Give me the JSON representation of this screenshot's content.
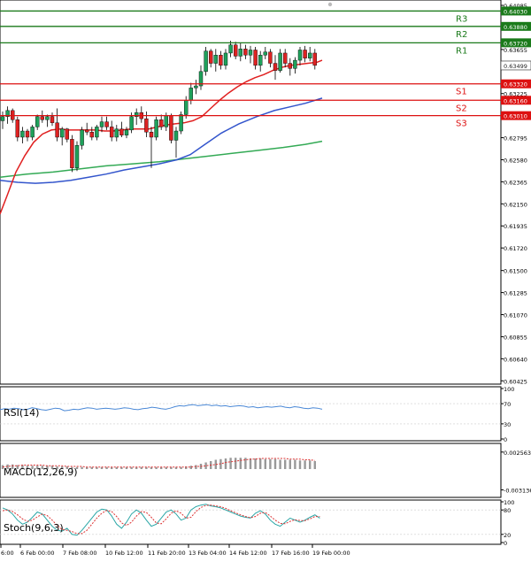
{
  "chart_data": [
    {
      "type": "candlestick",
      "panel": "price",
      "y_axis_ticks": [
        "0.64085",
        "0.63655",
        "0.63225",
        "0.62795",
        "0.62580",
        "0.62365",
        "0.62150",
        "0.61935",
        "0.61720",
        "0.61500",
        "0.61285",
        "0.61070",
        "0.60855",
        "0.60640",
        "0.60425"
      ],
      "ylim": [
        0.6041,
        0.6412
      ],
      "x_axis_labels": [
        "6:00",
        "6 Feb 00:00",
        "7 Feb 08:00",
        "10 Feb 12:00",
        "11 Feb 20:00",
        "13 Feb 04:00",
        "14 Feb 12:00",
        "17 Feb 16:00",
        "19 Feb 00:00"
      ],
      "current_price": {
        "label": "0.63499",
        "value": 0.63499
      },
      "levels": [
        {
          "name": "R3",
          "label": "0.64030",
          "value": 0.6403,
          "color": "#1a7a1a"
        },
        {
          "name": "R2",
          "label": "0.63880",
          "value": 0.6388,
          "color": "#1a7a1a"
        },
        {
          "name": "R1",
          "label": "0.63720",
          "value": 0.6372,
          "color": "#1a7a1a"
        },
        {
          "name": "S1",
          "label": "0.63320",
          "value": 0.6332,
          "color": "#dd1111"
        },
        {
          "name": "S2",
          "label": "0.63160",
          "value": 0.6316,
          "color": "#dd1111"
        },
        {
          "name": "S3",
          "label": "0.63010",
          "value": 0.6301,
          "color": "#dd1111"
        }
      ],
      "candles": [
        [
          0.6296,
          0.6305,
          0.6288,
          0.63
        ],
        [
          0.63,
          0.631,
          0.6293,
          0.6306
        ],
        [
          0.6306,
          0.6308,
          0.6294,
          0.6297
        ],
        [
          0.6297,
          0.63,
          0.6276,
          0.628
        ],
        [
          0.628,
          0.629,
          0.6274,
          0.6286
        ],
        [
          0.6286,
          0.6288,
          0.6276,
          0.628
        ],
        [
          0.628,
          0.6292,
          0.6277,
          0.629
        ],
        [
          0.629,
          0.6302,
          0.6287,
          0.63
        ],
        [
          0.63,
          0.6306,
          0.6294,
          0.6297
        ],
        [
          0.6297,
          0.6302,
          0.629,
          0.63
        ],
        [
          0.63,
          0.6304,
          0.6291,
          0.6294
        ],
        [
          0.6294,
          0.6308,
          0.6276,
          0.628
        ],
        [
          0.628,
          0.629,
          0.6272,
          0.6288
        ],
        [
          0.6288,
          0.6289,
          0.6275,
          0.6278
        ],
        [
          0.6278,
          0.6282,
          0.6246,
          0.625
        ],
        [
          0.625,
          0.6276,
          0.6247,
          0.6272
        ],
        [
          0.6272,
          0.629,
          0.6268,
          0.6287
        ],
        [
          0.6287,
          0.6294,
          0.6282,
          0.6285
        ],
        [
          0.6285,
          0.629,
          0.6277,
          0.628
        ],
        [
          0.628,
          0.6292,
          0.6277,
          0.629
        ],
        [
          0.629,
          0.63,
          0.6285,
          0.6295
        ],
        [
          0.6295,
          0.63,
          0.6287,
          0.629
        ],
        [
          0.629,
          0.6296,
          0.6276,
          0.628
        ],
        [
          0.628,
          0.6292,
          0.6276,
          0.6288
        ],
        [
          0.6288,
          0.6295,
          0.628,
          0.6282
        ],
        [
          0.6282,
          0.629,
          0.6279,
          0.6287
        ],
        [
          0.6287,
          0.6304,
          0.6284,
          0.63
        ],
        [
          0.63,
          0.6308,
          0.6292,
          0.6304
        ],
        [
          0.6304,
          0.631,
          0.6294,
          0.6298
        ],
        [
          0.6298,
          0.6305,
          0.628,
          0.6285
        ],
        [
          0.6285,
          0.629,
          0.625,
          0.628
        ],
        [
          0.628,
          0.63,
          0.6277,
          0.6297
        ],
        [
          0.6297,
          0.6302,
          0.6287,
          0.629
        ],
        [
          0.629,
          0.6304,
          0.6286,
          0.6301
        ],
        [
          0.6301,
          0.6303,
          0.6274,
          0.6277
        ],
        [
          0.6277,
          0.629,
          0.626,
          0.6286
        ],
        [
          0.6286,
          0.6305,
          0.6283,
          0.6302
        ],
        [
          0.6302,
          0.632,
          0.6298,
          0.6316
        ],
        [
          0.6316,
          0.6333,
          0.6312,
          0.6328
        ],
        [
          0.6328,
          0.6336,
          0.6322,
          0.633
        ],
        [
          0.633,
          0.635,
          0.6326,
          0.6344
        ],
        [
          0.6344,
          0.6368,
          0.634,
          0.6364
        ],
        [
          0.6364,
          0.6366,
          0.6348,
          0.6352
        ],
        [
          0.6352,
          0.6366,
          0.6344,
          0.636
        ],
        [
          0.636,
          0.6364,
          0.6346,
          0.635
        ],
        [
          0.635,
          0.6366,
          0.6346,
          0.6362
        ],
        [
          0.6362,
          0.6374,
          0.6358,
          0.637
        ],
        [
          0.637,
          0.6373,
          0.6356,
          0.6359
        ],
        [
          0.6359,
          0.6372,
          0.6354,
          0.6366
        ],
        [
          0.6366,
          0.637,
          0.6356,
          0.636
        ],
        [
          0.636,
          0.6369,
          0.6352,
          0.6365
        ],
        [
          0.6365,
          0.6368,
          0.6346,
          0.635
        ],
        [
          0.635,
          0.6364,
          0.6344,
          0.636
        ],
        [
          0.636,
          0.6368,
          0.6356,
          0.6363
        ],
        [
          0.6363,
          0.6366,
          0.6348,
          0.6352
        ],
        [
          0.6352,
          0.636,
          0.6336,
          0.6345
        ],
        [
          0.6345,
          0.6366,
          0.6343,
          0.6362
        ],
        [
          0.6362,
          0.6366,
          0.6348,
          0.6352
        ],
        [
          0.6352,
          0.6357,
          0.634,
          0.6347
        ],
        [
          0.6347,
          0.6358,
          0.6342,
          0.6355
        ],
        [
          0.6355,
          0.6368,
          0.635,
          0.6365
        ],
        [
          0.6365,
          0.6369,
          0.6353,
          0.6357
        ],
        [
          0.6357,
          0.6368,
          0.6354,
          0.6362
        ],
        [
          0.6362,
          0.6366,
          0.6346,
          0.635
        ]
      ],
      "ma_fast": [
        [
          0,
          0.6205
        ],
        [
          8,
          0.6223
        ],
        [
          18,
          0.6246
        ],
        [
          28,
          0.6262
        ],
        [
          38,
          0.6275
        ],
        [
          48,
          0.6283
        ],
        [
          58,
          0.6287
        ],
        [
          68,
          0.6288
        ],
        [
          78,
          0.6287
        ],
        [
          88,
          0.6287
        ],
        [
          98,
          0.6287
        ],
        [
          108,
          0.6287
        ],
        [
          118,
          0.6286
        ],
        [
          128,
          0.6286
        ],
        [
          138,
          0.6287
        ],
        [
          148,
          0.6288
        ],
        [
          158,
          0.6288
        ],
        [
          168,
          0.6288
        ],
        [
          178,
          0.629
        ],
        [
          188,
          0.6292
        ],
        [
          198,
          0.6293
        ],
        [
          208,
          0.6294
        ],
        [
          218,
          0.6296
        ],
        [
          228,
          0.63
        ],
        [
          238,
          0.6308
        ],
        [
          248,
          0.6316
        ],
        [
          258,
          0.6323
        ],
        [
          268,
          0.6329
        ],
        [
          278,
          0.6334
        ],
        [
          288,
          0.6338
        ],
        [
          298,
          0.6341
        ],
        [
          308,
          0.6345
        ],
        [
          318,
          0.6348
        ],
        [
          328,
          0.635
        ],
        [
          338,
          0.6351
        ],
        [
          348,
          0.6352
        ],
        [
          358,
          0.6353
        ],
        [
          364,
          0.6355
        ]
      ],
      "ma_mid": [
        [
          0,
          0.6238
        ],
        [
          20,
          0.6236
        ],
        [
          40,
          0.6235
        ],
        [
          60,
          0.6236
        ],
        [
          80,
          0.6238
        ],
        [
          100,
          0.6241
        ],
        [
          120,
          0.6244
        ],
        [
          140,
          0.6248
        ],
        [
          160,
          0.6251
        ],
        [
          180,
          0.6254
        ],
        [
          200,
          0.6258
        ],
        [
          215,
          0.6263
        ],
        [
          230,
          0.6272
        ],
        [
          250,
          0.6284
        ],
        [
          270,
          0.6293
        ],
        [
          290,
          0.63
        ],
        [
          310,
          0.6306
        ],
        [
          330,
          0.631
        ],
        [
          345,
          0.6313
        ],
        [
          364,
          0.6318
        ]
      ],
      "ma_slow": [
        [
          0,
          0.6241
        ],
        [
          30,
          0.6244
        ],
        [
          60,
          0.6246
        ],
        [
          90,
          0.6249
        ],
        [
          120,
          0.6252
        ],
        [
          150,
          0.6254
        ],
        [
          180,
          0.6256
        ],
        [
          210,
          0.6259
        ],
        [
          230,
          0.6261
        ],
        [
          260,
          0.6264
        ],
        [
          290,
          0.6267
        ],
        [
          320,
          0.627
        ],
        [
          345,
          0.6273
        ],
        [
          364,
          0.6276
        ]
      ],
      "colors": {
        "up": "#1fa15b",
        "down": "#dd2222",
        "ma_fast": "#e02020",
        "ma_mid": "#3355cc",
        "ma_slow": "#33aa55",
        "current": "#222222"
      }
    },
    {
      "type": "line",
      "panel": "rsi",
      "label": "RSI(14)",
      "y_axis_ticks": [
        "100",
        "70",
        "30",
        "0"
      ],
      "ylim": [
        0,
        100
      ],
      "color": "#4a88d6",
      "values": [
        58,
        60,
        59,
        61,
        60,
        58,
        59,
        62,
        60,
        58,
        57,
        59,
        61,
        60,
        56,
        57,
        59,
        58,
        60,
        62,
        61,
        59,
        60,
        61,
        60,
        59,
        60,
        62,
        61,
        59,
        58,
        60,
        61,
        63,
        62,
        60,
        59,
        61,
        64,
        66,
        65,
        67,
        68,
        66,
        67,
        68,
        66,
        67,
        65,
        66,
        64,
        65,
        66,
        65,
        63,
        64,
        62,
        63,
        64,
        63,
        64,
        65,
        63,
        62,
        64,
        63,
        61,
        60,
        62,
        61,
        59
      ]
    },
    {
      "type": "bar",
      "panel": "macd",
      "label": "MACD(12,26,9)",
      "y_axis_ticks": [
        "0.002563",
        "-0.003136"
      ],
      "ylim": [
        -0.004,
        0.0036
      ],
      "histogram_color": "#999999",
      "signal_color": "#dd3333",
      "histogram": [
        0.0006,
        0.0007,
        0.0007,
        0.0006,
        0.0006,
        0.0005,
        0.0005,
        0.0005,
        0.0005,
        0.0005,
        0.0005,
        0.0004,
        0.0004,
        0.0004,
        0.0003,
        0.0003,
        0.0003,
        0.0003,
        0.0003,
        0.0003,
        0.0003,
        0.0003,
        0.0003,
        0.0003,
        0.0003,
        0.0003,
        0.0003,
        0.0003,
        0.0003,
        0.0003,
        0.0003,
        0.0003,
        0.0003,
        0.0003,
        0.0003,
        0.0003,
        0.0003,
        0.0004,
        0.0005,
        0.0006,
        0.0008,
        0.001,
        0.0012,
        0.0014,
        0.0015,
        0.0016,
        0.0017,
        0.0017,
        0.0017,
        0.0017,
        0.0016,
        0.0016,
        0.0016,
        0.0015,
        0.0015,
        0.0015,
        0.0014,
        0.0014,
        0.0014,
        0.0014,
        0.0013,
        0.0013,
        0.0013,
        0.0012
      ],
      "signal": [
        0.0003,
        0.0004,
        0.0005,
        0.0005,
        0.0006,
        0.0006,
        0.0006,
        0.0006,
        0.0006,
        0.0005,
        0.0005,
        0.0005,
        0.0005,
        0.0004,
        0.0004,
        0.0004,
        0.0004,
        0.0003,
        0.0003,
        0.0003,
        0.0003,
        0.0003,
        0.0003,
        0.0003,
        0.0003,
        0.0003,
        0.0003,
        0.0003,
        0.0003,
        0.0003,
        0.0003,
        0.0003,
        0.0003,
        0.0003,
        0.0003,
        0.0003,
        0.0003,
        0.0003,
        0.0003,
        0.0004,
        0.0004,
        0.0005,
        0.0006,
        0.0007,
        0.0008,
        0.001,
        0.0011,
        0.0012,
        0.0013,
        0.0014,
        0.0015,
        0.0015,
        0.0016,
        0.0016,
        0.0016,
        0.0016,
        0.0016,
        0.0016,
        0.0015,
        0.0015,
        0.0015,
        0.0014,
        0.0014,
        0.0013
      ]
    },
    {
      "type": "line",
      "panel": "stoch",
      "label": "Stoch(9,6,3)",
      "y_axis_ticks": [
        "100",
        "80",
        "20",
        "0"
      ],
      "ylim": [
        0,
        100
      ],
      "main_color": "#2aa6a6",
      "signal_color": "#dd3333",
      "main": [
        85,
        80,
        70,
        55,
        45,
        50,
        62,
        75,
        70,
        55,
        40,
        30,
        28,
        35,
        20,
        18,
        30,
        45,
        60,
        75,
        82,
        80,
        65,
        45,
        35,
        50,
        70,
        80,
        72,
        55,
        40,
        45,
        60,
        75,
        80,
        70,
        55,
        60,
        80,
        88,
        92,
        94,
        90,
        88,
        85,
        80,
        75,
        70,
        65,
        62,
        60,
        72,
        78,
        70,
        55,
        45,
        40,
        50,
        60,
        55,
        50,
        55,
        62,
        68,
        60
      ],
      "signal": [
        78,
        80,
        76,
        68,
        58,
        52,
        55,
        63,
        70,
        66,
        55,
        42,
        32,
        30,
        27,
        22,
        22,
        30,
        45,
        60,
        72,
        79,
        76,
        64,
        48,
        42,
        50,
        65,
        76,
        74,
        62,
        48,
        46,
        58,
        72,
        78,
        72,
        60,
        62,
        76,
        86,
        91,
        92,
        90,
        88,
        84,
        78,
        73,
        68,
        64,
        61,
        64,
        72,
        74,
        65,
        55,
        47,
        46,
        52,
        56,
        54,
        54,
        58,
        64,
        64
      ]
    }
  ],
  "icons": {
    "gear": "gear-icon"
  }
}
